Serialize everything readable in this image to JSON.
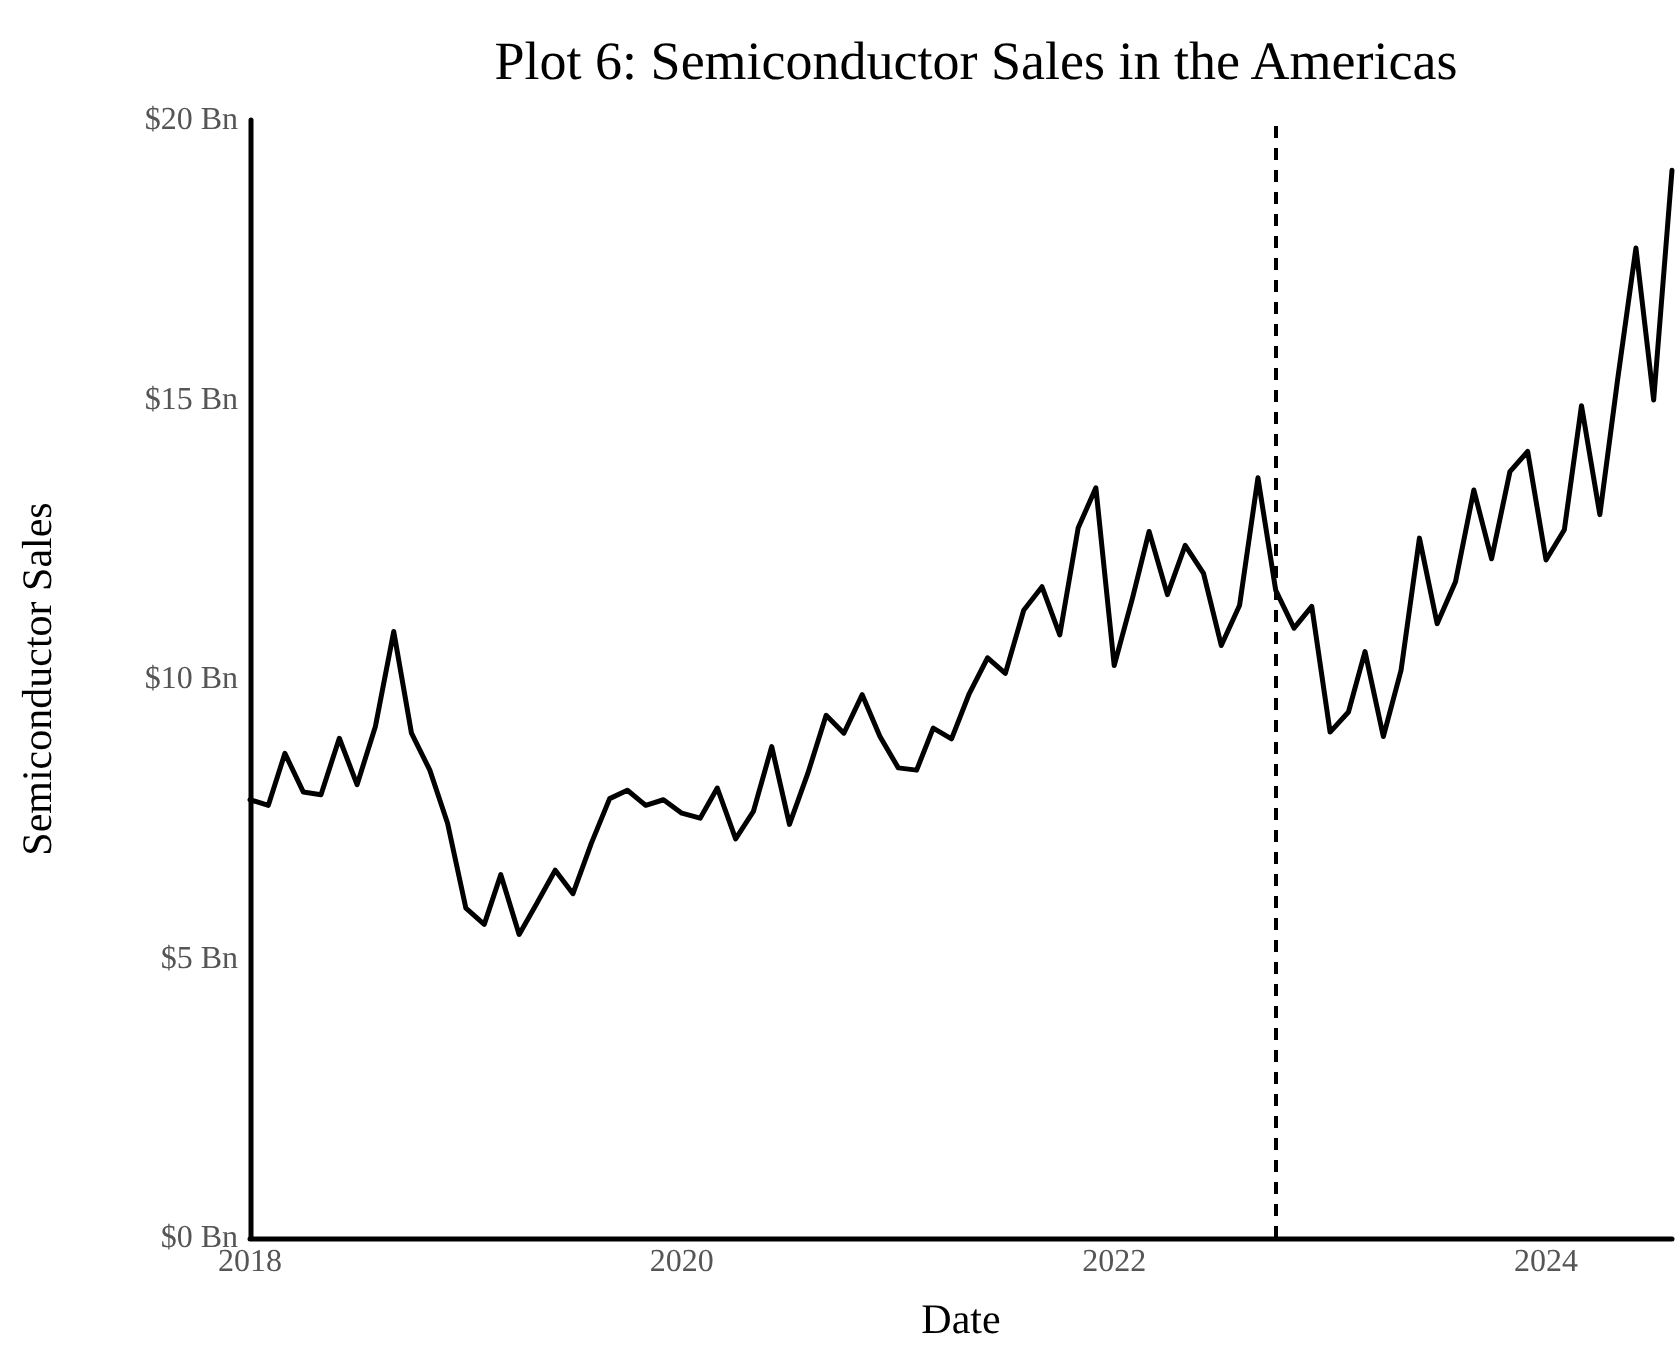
{
  "chart_data": {
    "type": "line",
    "title": "Plot 6: Semiconductor Sales in the Americas",
    "xlabel": "Date",
    "ylabel": "Semiconductor Sales",
    "x": [
      "2018-01",
      "2018-02",
      "2018-03",
      "2018-04",
      "2018-05",
      "2018-06",
      "2018-07",
      "2018-08",
      "2018-09",
      "2018-10",
      "2018-11",
      "2018-12",
      "2019-01",
      "2019-02",
      "2019-03",
      "2019-04",
      "2019-05",
      "2019-06",
      "2019-07",
      "2019-08",
      "2019-09",
      "2019-10",
      "2019-11",
      "2019-12",
      "2020-01",
      "2020-02",
      "2020-03",
      "2020-04",
      "2020-05",
      "2020-06",
      "2020-07",
      "2020-08",
      "2020-09",
      "2020-10",
      "2020-11",
      "2020-12",
      "2021-01",
      "2021-02",
      "2021-03",
      "2021-04",
      "2021-05",
      "2021-06",
      "2021-07",
      "2021-08",
      "2021-09",
      "2021-10",
      "2021-11",
      "2021-12",
      "2022-01",
      "2022-02",
      "2022-03",
      "2022-04",
      "2022-05",
      "2022-06",
      "2022-07",
      "2022-08",
      "2022-09",
      "2022-10",
      "2022-11",
      "2022-12",
      "2023-01",
      "2023-02",
      "2023-03",
      "2023-04",
      "2023-05",
      "2023-06",
      "2023-07",
      "2023-08",
      "2023-09",
      "2023-10",
      "2023-11",
      "2023-12",
      "2024-01",
      "2024-02",
      "2024-03",
      "2024-04",
      "2024-05",
      "2024-06",
      "2024-07",
      "2024-08"
    ],
    "series": [
      {
        "color": "#000000",
        "values": [
          7.84,
          7.74,
          8.67,
          7.98,
          7.93,
          8.94,
          8.11,
          9.15,
          10.85,
          9.03,
          8.37,
          7.42,
          5.9,
          5.61,
          6.5,
          5.43,
          5.99,
          6.58,
          6.16,
          7.06,
          7.86,
          8.01,
          7.74,
          7.84,
          7.6,
          7.51,
          8.05,
          7.14,
          7.63,
          8.79,
          7.4,
          8.31,
          9.35,
          9.03,
          9.72,
          8.97,
          8.41,
          8.37,
          9.12,
          8.93,
          9.74,
          10.38,
          10.1,
          11.23,
          11.65,
          10.79,
          12.7,
          13.42,
          10.24,
          11.45,
          12.64,
          11.51,
          12.39,
          11.89,
          10.6,
          11.32,
          13.6,
          11.59,
          10.91,
          11.3,
          9.05,
          9.41,
          10.49,
          8.97,
          10.16,
          12.52,
          10.99,
          11.74,
          13.38,
          12.15,
          13.71,
          14.07,
          12.13,
          12.67,
          14.89,
          12.94,
          15.35,
          17.71,
          14.99,
          19.1
        ]
      }
    ],
    "xlim": [
      "2018-01",
      "2024-08"
    ],
    "xticks": [
      "2018",
      "2020",
      "2022",
      "2024"
    ],
    "ylim": [
      0,
      20
    ],
    "yticks": [
      {
        "value": 0,
        "label": "$0 Bn"
      },
      {
        "value": 5,
        "label": "$5 Bn"
      },
      {
        "value": 10,
        "label": "$10 Bn"
      },
      {
        "value": 15,
        "label": "$15 Bn"
      },
      {
        "value": 20,
        "label": "$20 Bn"
      }
    ],
    "ref_lines": [
      {
        "axis": "x",
        "value": "2022-10",
        "color": "#000000",
        "line_style": "dashed"
      }
    ],
    "grid": false,
    "marker": "none",
    "line_style": "solid"
  }
}
